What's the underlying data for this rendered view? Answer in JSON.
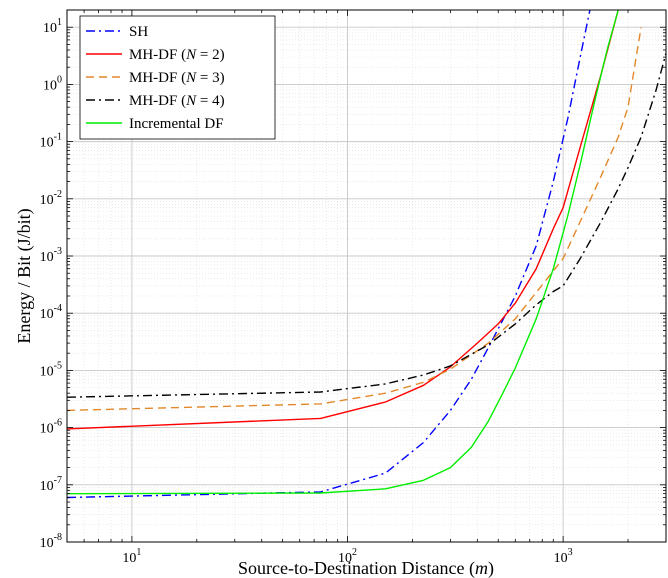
{
  "chart_data": {
    "type": "line",
    "xlabel": "Source-to-Destination Distance (m)",
    "ylabel": "Energy / Bit (J/bit)",
    "x_scale": "log",
    "y_scale": "log",
    "xlim": [
      5,
      3000
    ],
    "ylim": [
      1e-08,
      20
    ],
    "grid": true,
    "legend_position": "top-left",
    "x_ticks": [
      {
        "value": 10,
        "base": "10",
        "exp": "1"
      },
      {
        "value": 100,
        "base": "10",
        "exp": "2"
      },
      {
        "value": 1000,
        "base": "10",
        "exp": "3"
      }
    ],
    "y_ticks": [
      {
        "value": 1e-08,
        "base": "10",
        "exp": "-8"
      },
      {
        "value": 1e-07,
        "base": "10",
        "exp": "-7"
      },
      {
        "value": 1e-06,
        "base": "10",
        "exp": "-6"
      },
      {
        "value": 1e-05,
        "base": "10",
        "exp": "-5"
      },
      {
        "value": 0.0001,
        "base": "10",
        "exp": "-4"
      },
      {
        "value": 0.001,
        "base": "10",
        "exp": "-3"
      },
      {
        "value": 0.01,
        "base": "10",
        "exp": "-2"
      },
      {
        "value": 0.1,
        "base": "10",
        "exp": "-1"
      },
      {
        "value": 1,
        "base": "10",
        "exp": "0"
      },
      {
        "value": 10,
        "base": "10",
        "exp": "1"
      }
    ],
    "series": [
      {
        "name": "SH",
        "legend_parts": [
          "SH"
        ],
        "color": "#0000ff",
        "dash": "dashdot",
        "x": [
          5,
          75,
          150,
          225,
          300,
          375,
          450,
          600,
          750,
          900,
          1050,
          1200,
          1400
        ],
        "y": [
          6e-08,
          7.5e-08,
          1.6e-07,
          5.5e-07,
          2e-06,
          7e-06,
          2.5e-05,
          0.0002,
          0.0015,
          0.02,
          0.25,
          3,
          50
        ]
      },
      {
        "name": "MH-DF (N = 2)",
        "legend_parts": [
          "MH-DF (",
          "N",
          " = 2)"
        ],
        "color": "#ff0000",
        "dash": "solid",
        "x": [
          5,
          75,
          150,
          225,
          300,
          400,
          500,
          600,
          750,
          900,
          1000,
          1200,
          1500,
          1800
        ],
        "y": [
          9.5e-07,
          1.45e-06,
          2.8e-06,
          5.5e-06,
          1.15e-05,
          3e-05,
          6.5e-05,
          0.00015,
          0.0006,
          0.003,
          0.007,
          0.08,
          1.5,
          20
        ]
      },
      {
        "name": "MH-DF (N = 3)",
        "legend_parts": [
          "MH-DF (",
          "N",
          " = 3)"
        ],
        "color": "#e3882a",
        "dash": "dashed",
        "x": [
          5,
          75,
          150,
          225,
          300,
          450,
          600,
          750,
          900,
          1000,
          1200,
          1500,
          1800,
          2000,
          2300
        ],
        "y": [
          2e-06,
          2.6e-06,
          4e-06,
          6.2e-06,
          1.05e-05,
          3e-05,
          8e-05,
          0.00023,
          0.00055,
          0.0009,
          0.004,
          0.025,
          0.12,
          0.4,
          10
        ]
      },
      {
        "name": "MH-DF (N = 4)",
        "legend_parts": [
          "MH-DF (",
          "N",
          " = 4)"
        ],
        "color": "#000000",
        "dash": "dashdot",
        "x": [
          5,
          75,
          150,
          225,
          300,
          450,
          600,
          750,
          900,
          1000,
          1200,
          1500,
          1800,
          2000,
          2300,
          2700,
          3000
        ],
        "y": [
          3.4e-06,
          4.2e-06,
          5.8e-06,
          8.3e-06,
          1.2e-05,
          2.8e-05,
          6.5e-05,
          0.00014,
          0.00024,
          0.0003,
          0.0009,
          0.004,
          0.015,
          0.035,
          0.12,
          0.8,
          3.5
        ]
      },
      {
        "name": "Incremental DF",
        "legend_parts": [
          "Incremental DF"
        ],
        "color": "#00ee00",
        "dash": "solid",
        "x": [
          5,
          75,
          150,
          225,
          300,
          375,
          450,
          525,
          600,
          750,
          900,
          1050,
          1200,
          1400,
          1600,
          1800
        ],
        "y": [
          7e-08,
          7.2e-08,
          8.5e-08,
          1.2e-07,
          2e-07,
          4.5e-07,
          1.3e-06,
          4e-06,
          1.1e-05,
          8e-05,
          0.0006,
          0.005,
          0.04,
          0.5,
          4,
          20
        ]
      }
    ]
  }
}
